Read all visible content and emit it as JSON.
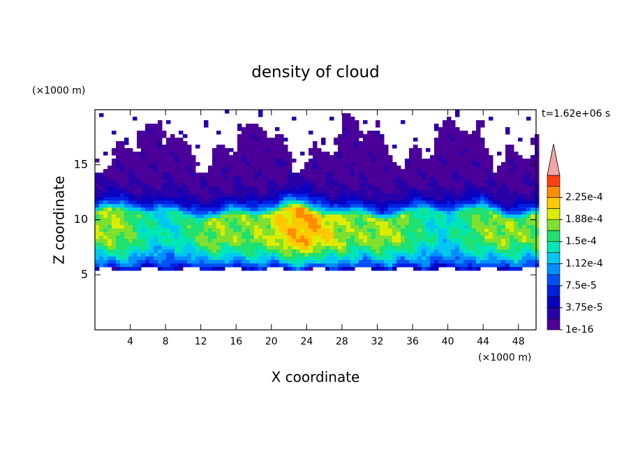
{
  "chart_data": {
    "type": "contour",
    "title": "density of cloud",
    "xlabel": "X coordinate",
    "ylabel": "Z coordinate",
    "x_unit": "(×1000 m)",
    "y_unit": "(×1000 m)",
    "annotation": "t=1.62e+06 s",
    "xlim": [
      0,
      50
    ],
    "ylim": [
      0,
      20
    ],
    "xticks": [
      4,
      8,
      12,
      16,
      20,
      24,
      28,
      32,
      36,
      40,
      44,
      48
    ],
    "yticks": [
      5,
      10,
      15
    ],
    "colorbar": {
      "colors": [
        "#4a0098",
        "#2800a8",
        "#0a00c0",
        "#0020e0",
        "#0050f8",
        "#0090ff",
        "#00c8f0",
        "#00e6b4",
        "#20e070",
        "#80e030",
        "#dcec00",
        "#ffc800",
        "#ff8c00",
        "#ff4010"
      ],
      "extend_color": "#f4a4a4",
      "lim": [
        1e-16,
        0.00026250000000000004
      ],
      "ticks": [
        {
          "value": 1e-16,
          "label": "1e-16"
        },
        {
          "value": 3.75e-05,
          "label": "3.75e-5"
        },
        {
          "value": 7.5e-05,
          "label": "7.5e-5"
        },
        {
          "value": 0.0001125,
          "label": "1.12e-4"
        },
        {
          "value": 0.00015,
          "label": "1.5e-4"
        },
        {
          "value": 0.0001875,
          "label": "1.88e-4"
        },
        {
          "value": 0.000225,
          "label": "2.25e-4"
        }
      ]
    }
  }
}
